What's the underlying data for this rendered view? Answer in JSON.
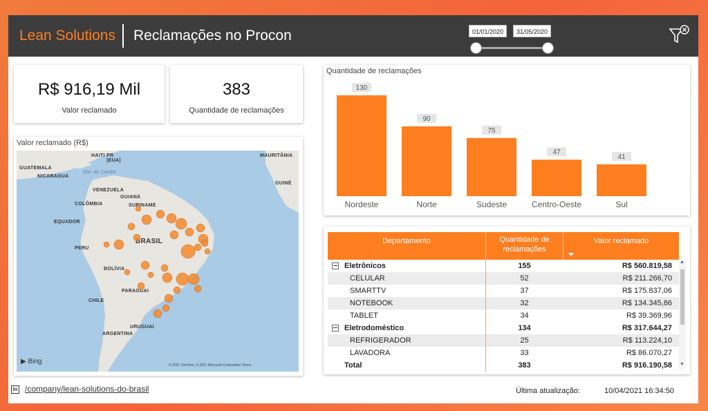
{
  "header": {
    "brand": "Lean Solutions",
    "title": "Reclamações no Procon",
    "date_start": "01/01/2020",
    "date_end": "31/05/2020"
  },
  "kpis": [
    {
      "value": "R$ 916,19 Mil",
      "label": "Valor reclamado"
    },
    {
      "value": "383",
      "label": "Quantidade de reclamações"
    }
  ],
  "map": {
    "title": "Valor reclamado (R$)",
    "labels": {
      "haiti": "HAITI",
      "pr": "PR\n(EUA)",
      "mar_caribe": "Mar do Caribe",
      "mauritania": "MAURITÂNIA",
      "guatemala": "GUATEMALA",
      "nicaragua": "NICARAGUA",
      "venezuela": "VENEZUELA",
      "guiana": "GUIANA",
      "suriname": "SURINAME",
      "colombia": "COLÔMBIA",
      "equador": "EQUADOR",
      "peru": "PERU",
      "brasil": "BRASIL",
      "bolivia": "BOLÍVIA",
      "paraguai": "PARAGUAI",
      "chile": "CHILE",
      "uruguai": "URUGUAI",
      "argentina": "ARGENTINA",
      "guine": "GUINÉ"
    },
    "bing": "Bing",
    "copyright": "© 2021 TomTom, © 2021 Microsoft Corporation  Terms"
  },
  "chart_data": {
    "type": "bar",
    "title": "Quantidade de reclamações",
    "categories": [
      "Nordeste",
      "Norte",
      "Sudeste",
      "Centro-Oeste",
      "Sul"
    ],
    "values": [
      130,
      90,
      75,
      47,
      41
    ],
    "color": "#ff7e1f",
    "data_labels": true
  },
  "table": {
    "headers": {
      "departamento": "Departamento",
      "quantidade": "Quantidade de reclamações",
      "valor": "Valor reclamado"
    },
    "rows": [
      {
        "type": "group",
        "label": "Eletrônicos",
        "qty": "155",
        "value": "R$ 560.819,58"
      },
      {
        "type": "child",
        "label": "CELULAR",
        "qty": "52",
        "value": "R$ 211.266,70"
      },
      {
        "type": "child",
        "label": "SMARTTV",
        "qty": "37",
        "value": "R$ 175.837,06"
      },
      {
        "type": "child",
        "label": "NOTEBOOK",
        "qty": "32",
        "value": "R$ 134.345,86"
      },
      {
        "type": "child",
        "label": "TABLET",
        "qty": "34",
        "value": "R$ 39.369,96"
      },
      {
        "type": "group",
        "label": "Eletrodoméstico",
        "qty": "134",
        "value": "R$ 317.644,27"
      },
      {
        "type": "child",
        "label": "REFRIGERADOR",
        "qty": "25",
        "value": "R$ 113.224,10"
      },
      {
        "type": "child",
        "label": "LAVADORA",
        "qty": "33",
        "value": "R$ 86.070,27"
      },
      {
        "type": "total",
        "label": "Total",
        "qty": "383",
        "value": "R$ 916.190,58"
      }
    ]
  },
  "footer": {
    "link": "/company/lean-solutions-do-brasil",
    "update_label": "Última atualização:",
    "update_value": "10/04/2021 16:34:50"
  }
}
